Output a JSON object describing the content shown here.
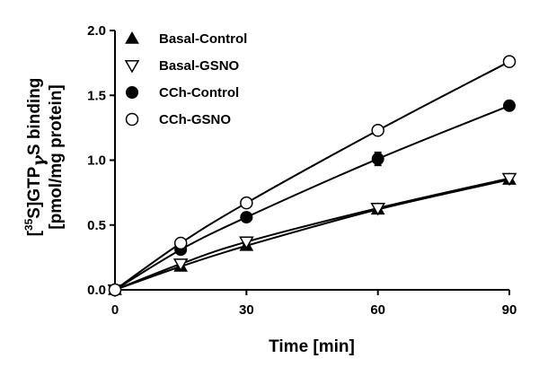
{
  "chart_data": {
    "type": "line",
    "xlabel": "Time [min]",
    "ylabel_line1": "[35S]GTPγS binding",
    "ylabel_line2": "[pmol/mg protein]",
    "ylabel_parts": {
      "open": "[",
      "sup": "35",
      "a": "S]GTP",
      "gamma": "γ",
      "b": "S binding"
    },
    "xlim": [
      0,
      90
    ],
    "ylim": [
      0,
      2.0
    ],
    "x_ticks": [
      0,
      30,
      60,
      90
    ],
    "x_tick_labels": [
      "0",
      "30",
      "60",
      "90"
    ],
    "y_ticks": [
      0.0,
      0.5,
      1.0,
      1.5,
      2.0
    ],
    "y_tick_labels": [
      "0.0",
      "0.5",
      "1.0",
      "1.5",
      "2.0"
    ],
    "grid": false,
    "legend_position": "top-left",
    "series": [
      {
        "name": "Basal-Control",
        "marker": "triangle-up-filled",
        "x": [
          0,
          15,
          30,
          60,
          90
        ],
        "y": [
          0.0,
          0.18,
          0.34,
          0.62,
          0.85
        ],
        "error": [
          0,
          0.02,
          0.02,
          0.02,
          0.02
        ]
      },
      {
        "name": "Basal-GSNO",
        "marker": "triangle-down-open",
        "x": [
          0,
          15,
          30,
          60,
          90
        ],
        "y": [
          0.0,
          0.2,
          0.37,
          0.63,
          0.86
        ],
        "error": [
          0,
          0.02,
          0.02,
          0.02,
          0.02
        ]
      },
      {
        "name": "CCh-Control",
        "marker": "circle-filled",
        "x": [
          0,
          15,
          30,
          60,
          90
        ],
        "y": [
          0.0,
          0.31,
          0.56,
          1.01,
          1.42
        ],
        "error": [
          0,
          0.02,
          0.03,
          0.05,
          0.03
        ]
      },
      {
        "name": "CCh-GSNO",
        "marker": "circle-open",
        "x": [
          0,
          15,
          30,
          60,
          90
        ],
        "y": [
          0.0,
          0.36,
          0.67,
          1.23,
          1.76
        ],
        "error": [
          0,
          0.02,
          0.02,
          0.03,
          0.02
        ]
      }
    ]
  }
}
